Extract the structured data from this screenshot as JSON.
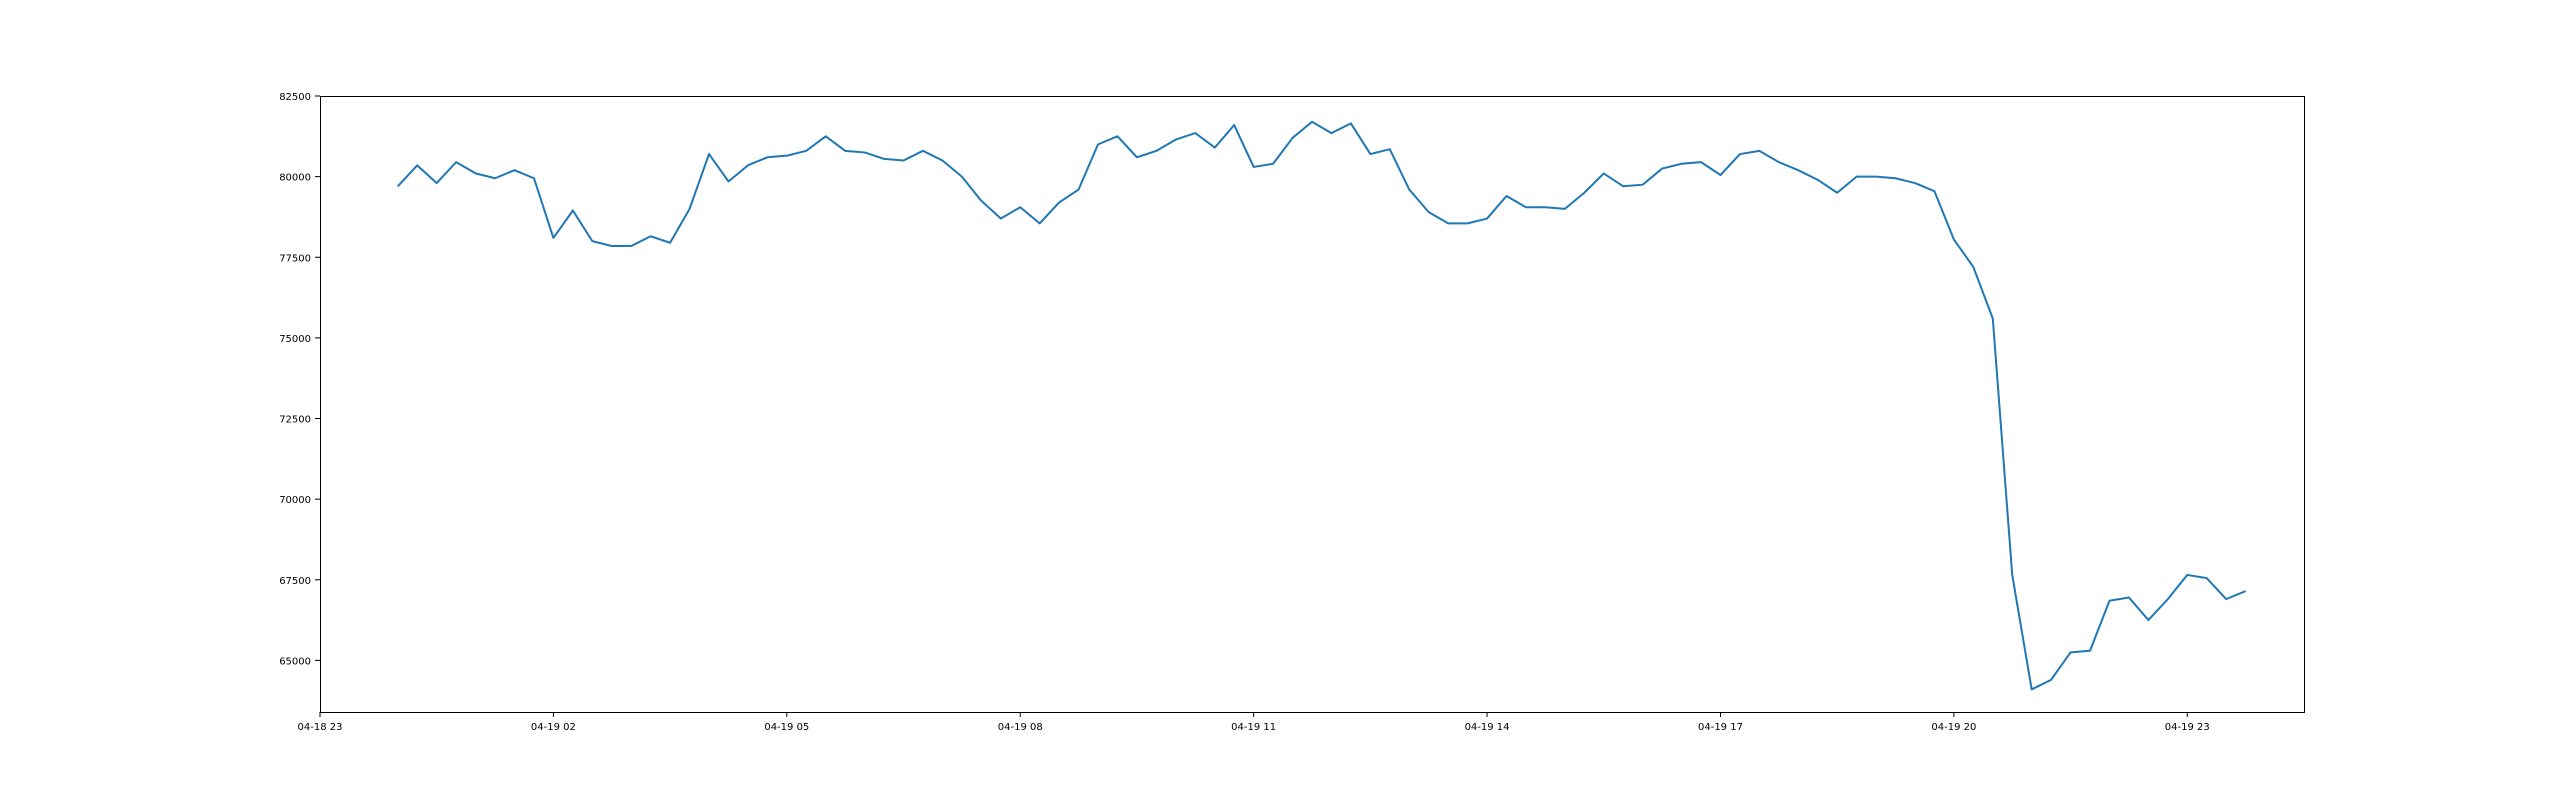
{
  "chart_data": {
    "type": "line",
    "title": "",
    "xlabel": "",
    "ylabel": "",
    "x_range": [
      "2025-04-18 23:00",
      "2025-04-20 00:30"
    ],
    "ylim": [
      63400,
      82500
    ],
    "grid": false,
    "legend": "none",
    "x_tick_labels": [
      "04-18 23",
      "04-19 02",
      "04-19 05",
      "04-19 08",
      "04-19 11",
      "04-19 14",
      "04-19 17",
      "04-19 20",
      "04-19 23"
    ],
    "y_tick_labels": [
      "65000",
      "67500",
      "70000",
      "72500",
      "75000",
      "77500",
      "80000",
      "82500"
    ],
    "y_tick_values": [
      65000,
      67500,
      70000,
      72500,
      75000,
      77500,
      80000,
      82500
    ],
    "series": [
      {
        "color": "#1f77b4",
        "x": [
          "04-19 00:00",
          "04-19 00:15",
          "04-19 00:30",
          "04-19 00:45",
          "04-19 01:00",
          "04-19 01:15",
          "04-19 01:30",
          "04-19 01:45",
          "04-19 02:00",
          "04-19 02:15",
          "04-19 02:30",
          "04-19 02:45",
          "04-19 03:00",
          "04-19 03:15",
          "04-19 03:30",
          "04-19 03:45",
          "04-19 04:00",
          "04-19 04:15",
          "04-19 04:30",
          "04-19 04:45",
          "04-19 05:00",
          "04-19 05:15",
          "04-19 05:30",
          "04-19 05:45",
          "04-19 06:00",
          "04-19 06:15",
          "04-19 06:30",
          "04-19 06:45",
          "04-19 07:00",
          "04-19 07:15",
          "04-19 07:30",
          "04-19 07:45",
          "04-19 08:00",
          "04-19 08:15",
          "04-19 08:30",
          "04-19 08:45",
          "04-19 09:00",
          "04-19 09:15",
          "04-19 09:30",
          "04-19 09:45",
          "04-19 10:00",
          "04-19 10:15",
          "04-19 10:30",
          "04-19 10:45",
          "04-19 11:00",
          "04-19 11:15",
          "04-19 11:30",
          "04-19 11:45",
          "04-19 12:00",
          "04-19 12:15",
          "04-19 12:30",
          "04-19 12:45",
          "04-19 13:00",
          "04-19 13:15",
          "04-19 13:30",
          "04-19 13:45",
          "04-19 14:00",
          "04-19 14:15",
          "04-19 14:30",
          "04-19 14:45",
          "04-19 15:00",
          "04-19 15:15",
          "04-19 15:30",
          "04-19 15:45",
          "04-19 16:00",
          "04-19 16:15",
          "04-19 16:30",
          "04-19 16:45",
          "04-19 17:00",
          "04-19 17:15",
          "04-19 17:30",
          "04-19 17:45",
          "04-19 18:00",
          "04-19 18:15",
          "04-19 18:30",
          "04-19 18:45",
          "04-19 19:00",
          "04-19 19:15",
          "04-19 19:30",
          "04-19 19:45",
          "04-19 20:00",
          "04-19 20:15",
          "04-19 20:30",
          "04-19 20:45",
          "04-19 21:00",
          "04-19 21:15",
          "04-19 21:30",
          "04-19 21:45",
          "04-19 22:00",
          "04-19 22:15",
          "04-19 22:30",
          "04-19 22:45",
          "04-19 23:00",
          "04-19 23:15",
          "04-19 23:30",
          "04-19 23:45"
        ],
        "values": [
          79700,
          80350,
          79800,
          80450,
          80100,
          79950,
          80200,
          79950,
          78100,
          78950,
          78000,
          77850,
          77850,
          78150,
          77950,
          79000,
          80700,
          79850,
          80350,
          80600,
          80650,
          80800,
          81250,
          80800,
          80750,
          80550,
          80500,
          80800,
          80500,
          80000,
          79250,
          78700,
          79050,
          78550,
          79200,
          79600,
          81000,
          81250,
          80600,
          80800,
          81150,
          81350,
          80900,
          81600,
          80300,
          80400,
          81200,
          81700,
          81350,
          81650,
          80700,
          80850,
          79600,
          78900,
          78550,
          78550,
          78700,
          79400,
          79050,
          79050,
          79000,
          79500,
          80100,
          79700,
          79750,
          80250,
          80400,
          80450,
          80050,
          80700,
          80800,
          80450,
          80200,
          79900,
          79500,
          80000,
          80000,
          79950,
          79800,
          79550,
          78050,
          77200,
          75600,
          67650,
          64100,
          64400,
          65250,
          65300,
          66850,
          66950,
          66250,
          66900,
          67650,
          67550,
          66900,
          67150
        ]
      }
    ]
  }
}
